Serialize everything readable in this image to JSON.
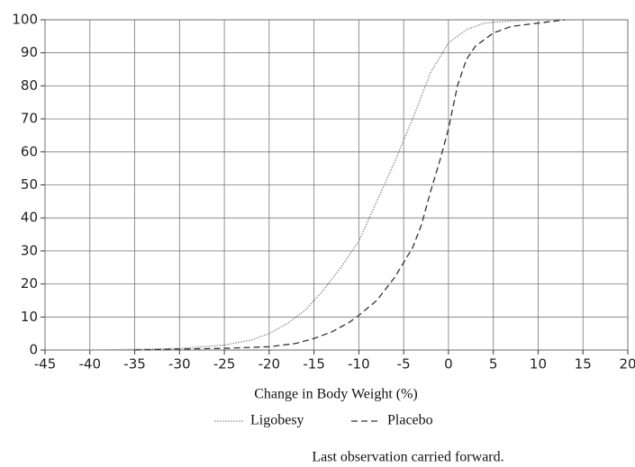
{
  "chart_data": {
    "type": "line",
    "xlabel": "Change in Body Weight (%)",
    "note": "Last observation carried forward.",
    "xlim": [
      -45,
      20
    ],
    "xticks": [
      -45,
      -40,
      -35,
      -30,
      -25,
      -20,
      -15,
      -10,
      -5,
      0,
      5,
      10,
      15,
      20
    ],
    "ylim": [
      0,
      100
    ],
    "yticks": [
      0,
      10,
      20,
      30,
      40,
      50,
      60,
      70,
      80,
      90,
      100
    ],
    "grid": true,
    "series": [
      {
        "name": "Ligobesy",
        "color": "#8a8a8a",
        "line_style": "dotted",
        "x": [
          -40,
          -35,
          -30,
          -25,
          -22,
          -20,
          -18,
          -16,
          -14,
          -12,
          -10,
          -8,
          -6,
          -4,
          -2,
          0,
          2,
          4,
          6,
          10,
          15
        ],
        "values": [
          0,
          0.2,
          0.5,
          1.5,
          3,
          5,
          8,
          12,
          18,
          25,
          33,
          45,
          57,
          70,
          84,
          93,
          97,
          99,
          99.5,
          100,
          100
        ]
      },
      {
        "name": "Placebo",
        "color": "#333333",
        "line_style": "dashed",
        "x": [
          -35,
          -30,
          -25,
          -20,
          -17,
          -15,
          -13,
          -11,
          -10,
          -8,
          -6,
          -4,
          -3,
          -2,
          -1,
          0,
          1,
          2,
          3,
          5,
          7,
          10,
          13
        ],
        "values": [
          0,
          0.3,
          0.5,
          1,
          2,
          3.5,
          5.5,
          8.5,
          10.5,
          15,
          22,
          31,
          38,
          48,
          57,
          67,
          80,
          88,
          92,
          96,
          98,
          99,
          100
        ]
      }
    ]
  }
}
